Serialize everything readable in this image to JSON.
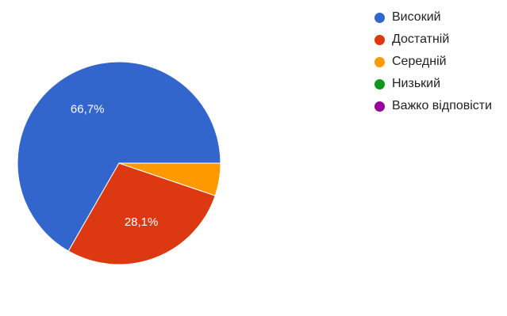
{
  "chart_data": {
    "type": "pie",
    "categories": [
      "Високий",
      "Достатній",
      "Середній",
      "Низький",
      "Важко відповісти"
    ],
    "values": [
      66.7,
      28.1,
      5.2,
      0,
      0
    ],
    "colors": [
      "#3366cc",
      "#dc3912",
      "#ff9900",
      "#109618",
      "#990099"
    ],
    "data_labels": [
      "66,7%",
      "28,1%",
      "",
      "",
      ""
    ],
    "start_direction": "right (3 o'clock), counter-clockwise",
    "legend_position": "top-right"
  }
}
